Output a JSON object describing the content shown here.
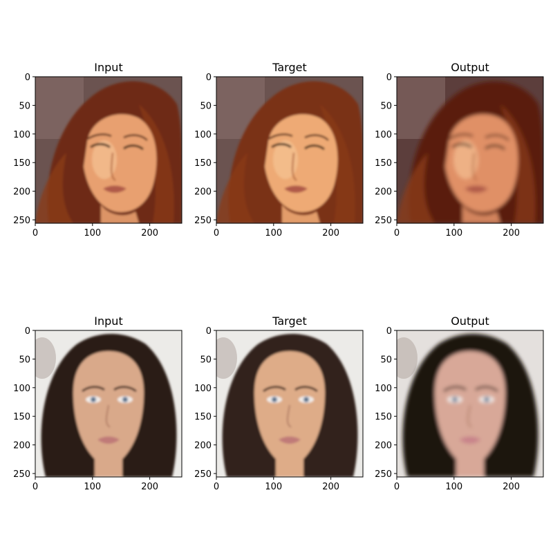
{
  "panels": [
    {
      "title": "Input",
      "x_ticks": [
        "0",
        "100",
        "200"
      ],
      "y_ticks": [
        "0",
        "50",
        "100",
        "150",
        "200",
        "250"
      ],
      "subject": "woman with auburn wavy hair, eyes closed, warm sepia tones",
      "variant": "input"
    },
    {
      "title": "Target",
      "x_ticks": [
        "0",
        "100",
        "200"
      ],
      "y_ticks": [
        "0",
        "50",
        "100",
        "150",
        "200",
        "250"
      ],
      "subject": "woman with auburn wavy hair, eyes closed, warm sepia tones",
      "variant": "target"
    },
    {
      "title": "Output",
      "x_ticks": [
        "0",
        "100",
        "200"
      ],
      "y_ticks": [
        "0",
        "50",
        "100",
        "150",
        "200",
        "250"
      ],
      "subject": "woman with auburn wavy hair, eyes closed, warm sepia tones",
      "variant": "output"
    },
    {
      "title": "Input",
      "x_ticks": [
        "0",
        "100",
        "200"
      ],
      "y_ticks": [
        "0",
        "50",
        "100",
        "150",
        "200",
        "250"
      ],
      "subject": "woman with long dark brown hair, blue eyes, frontal portrait",
      "variant": "input"
    },
    {
      "title": "Target",
      "x_ticks": [
        "0",
        "100",
        "200"
      ],
      "y_ticks": [
        "0",
        "50",
        "100",
        "150",
        "200",
        "250"
      ],
      "subject": "woman with long dark brown hair, blue eyes, frontal portrait",
      "variant": "target"
    },
    {
      "title": "Output",
      "x_ticks": [
        "0",
        "100",
        "200"
      ],
      "y_ticks": [
        "0",
        "50",
        "100",
        "150",
        "200",
        "250"
      ],
      "subject": "woman with long dark brown hair, blue eyes, frontal portrait",
      "variant": "output"
    }
  ],
  "image_extent": [
    0,
    256
  ],
  "colors": {
    "row1_bg": "#6b5350",
    "row1_hair": "#6e2a12",
    "row1_skin": "#e8a070",
    "row2_bg": "#ecebe8",
    "row2_hair": "#2a1d16",
    "row2_skin": "#d9a98a",
    "eye_blue": "#7f95b0",
    "lips": "#c07a78"
  }
}
